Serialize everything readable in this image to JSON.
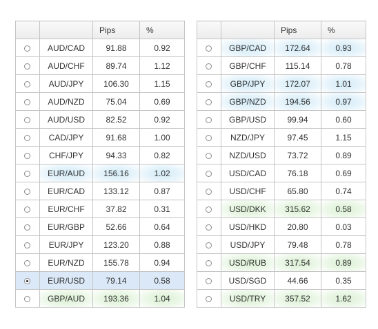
{
  "headers": {
    "select": "",
    "pair": "",
    "pips": "Pips",
    "pct": "%"
  },
  "colors": {
    "grid_border": "#c4c4c4",
    "highlight_blue": "#d2eaf6",
    "highlight_green": "#d9efd3",
    "selected_row": "#dbe8f7"
  },
  "left_table": {
    "rows": [
      {
        "pair": "AUD/CAD",
        "pips": "91.88",
        "pct": "0.92",
        "selected": false,
        "highlight": "none"
      },
      {
        "pair": "AUD/CHF",
        "pips": "89.74",
        "pct": "1.12",
        "selected": false,
        "highlight": "none"
      },
      {
        "pair": "AUD/JPY",
        "pips": "106.30",
        "pct": "1.15",
        "selected": false,
        "highlight": "none"
      },
      {
        "pair": "AUD/NZD",
        "pips": "75.04",
        "pct": "0.69",
        "selected": false,
        "highlight": "none"
      },
      {
        "pair": "AUD/USD",
        "pips": "82.52",
        "pct": "0.92",
        "selected": false,
        "highlight": "none"
      },
      {
        "pair": "CAD/JPY",
        "pips": "91.68",
        "pct": "1.00",
        "selected": false,
        "highlight": "none"
      },
      {
        "pair": "CHF/JPY",
        "pips": "94.33",
        "pct": "0.82",
        "selected": false,
        "highlight": "none"
      },
      {
        "pair": "EUR/AUD",
        "pips": "156.16",
        "pct": "1.02",
        "selected": false,
        "highlight": "blue"
      },
      {
        "pair": "EUR/CAD",
        "pips": "133.12",
        "pct": "0.87",
        "selected": false,
        "highlight": "none"
      },
      {
        "pair": "EUR/CHF",
        "pips": "37.82",
        "pct": "0.31",
        "selected": false,
        "highlight": "none"
      },
      {
        "pair": "EUR/GBP",
        "pips": "52.66",
        "pct": "0.64",
        "selected": false,
        "highlight": "none"
      },
      {
        "pair": "EUR/JPY",
        "pips": "123.20",
        "pct": "0.88",
        "selected": false,
        "highlight": "none"
      },
      {
        "pair": "EUR/NZD",
        "pips": "155.78",
        "pct": "0.94",
        "selected": false,
        "highlight": "none"
      },
      {
        "pair": "EUR/USD",
        "pips": "79.14",
        "pct": "0.58",
        "selected": true,
        "highlight": "none"
      },
      {
        "pair": "GBP/AUD",
        "pips": "193.36",
        "pct": "1.04",
        "selected": false,
        "highlight": "green"
      }
    ]
  },
  "right_table": {
    "rows": [
      {
        "pair": "GBP/CAD",
        "pips": "172.64",
        "pct": "0.93",
        "selected": false,
        "highlight": "blue"
      },
      {
        "pair": "GBP/CHF",
        "pips": "115.14",
        "pct": "0.78",
        "selected": false,
        "highlight": "none"
      },
      {
        "pair": "GBP/JPY",
        "pips": "172.07",
        "pct": "1.01",
        "selected": false,
        "highlight": "blue"
      },
      {
        "pair": "GBP/NZD",
        "pips": "194.56",
        "pct": "0.97",
        "selected": false,
        "highlight": "blue"
      },
      {
        "pair": "GBP/USD",
        "pips": "99.94",
        "pct": "0.60",
        "selected": false,
        "highlight": "none"
      },
      {
        "pair": "NZD/JPY",
        "pips": "97.45",
        "pct": "1.15",
        "selected": false,
        "highlight": "none"
      },
      {
        "pair": "NZD/USD",
        "pips": "73.72",
        "pct": "0.89",
        "selected": false,
        "highlight": "none"
      },
      {
        "pair": "USD/CAD",
        "pips": "76.18",
        "pct": "0.69",
        "selected": false,
        "highlight": "none"
      },
      {
        "pair": "USD/CHF",
        "pips": "65.80",
        "pct": "0.74",
        "selected": false,
        "highlight": "none"
      },
      {
        "pair": "USD/DKK",
        "pips": "315.62",
        "pct": "0.58",
        "selected": false,
        "highlight": "green"
      },
      {
        "pair": "USD/HKD",
        "pips": "20.80",
        "pct": "0.03",
        "selected": false,
        "highlight": "none"
      },
      {
        "pair": "USD/JPY",
        "pips": "79.48",
        "pct": "0.78",
        "selected": false,
        "highlight": "none"
      },
      {
        "pair": "USD/RUB",
        "pips": "317.54",
        "pct": "0.89",
        "selected": false,
        "highlight": "green"
      },
      {
        "pair": "USD/SGD",
        "pips": "44.66",
        "pct": "0.35",
        "selected": false,
        "highlight": "none"
      },
      {
        "pair": "USD/TRY",
        "pips": "357.52",
        "pct": "1.62",
        "selected": false,
        "highlight": "green"
      }
    ]
  }
}
